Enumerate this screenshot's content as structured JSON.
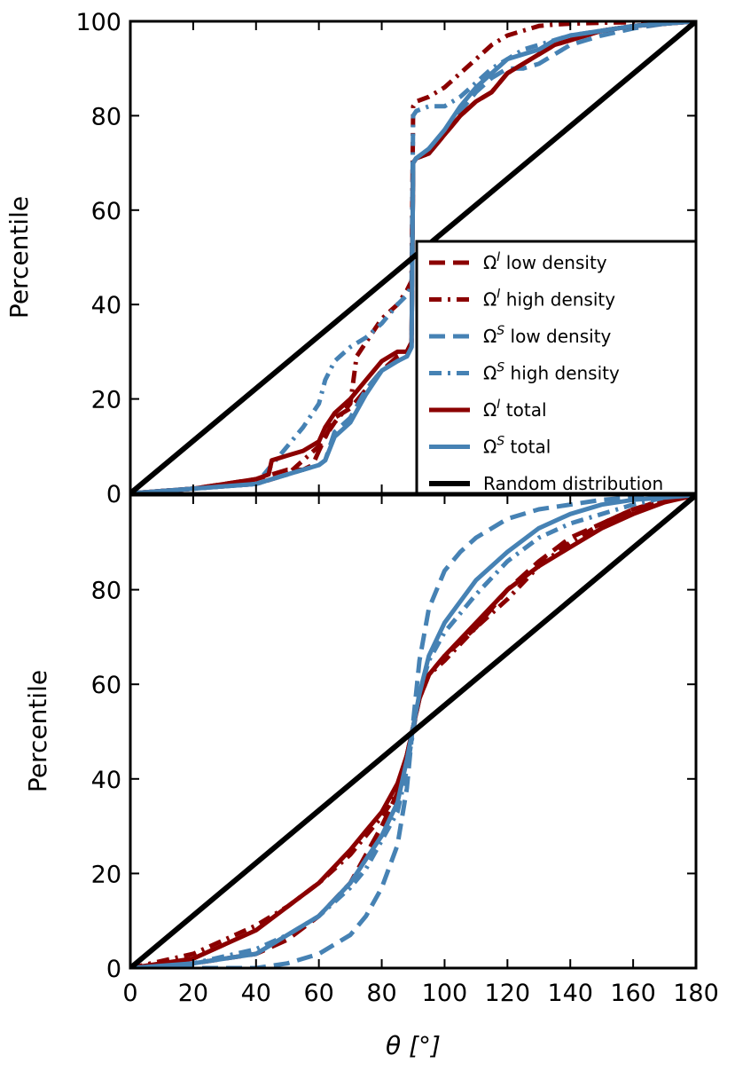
{
  "colors": {
    "omega_i": "#8b0000",
    "omega_s": "#4682b4",
    "random": "#000000",
    "background": "#ffffff"
  },
  "chart_data": [
    {
      "type": "line",
      "panel": "top",
      "title": "",
      "xlabel": "",
      "ylabel": "Percentile",
      "xlim": [
        0,
        180
      ],
      "ylim": [
        0,
        100
      ],
      "yticks": [
        "0",
        "20",
        "40",
        "60",
        "80",
        "100"
      ],
      "legend": {
        "placement": "lower-right",
        "entries": [
          {
            "symbol": "Ω",
            "sup": "I",
            "text": " low density",
            "style": "dashed",
            "color": "omega_i"
          },
          {
            "symbol": "Ω",
            "sup": "I",
            "text": " high density",
            "style": "dashdot",
            "color": "omega_i"
          },
          {
            "symbol": "Ω",
            "sup": "S",
            "text": " low density",
            "style": "dashed",
            "color": "omega_s"
          },
          {
            "symbol": "Ω",
            "sup": "S",
            "text": " high density",
            "style": "dashdot",
            "color": "omega_s"
          },
          {
            "symbol": "Ω",
            "sup": "I",
            "text": " total",
            "style": "solid",
            "color": "omega_i"
          },
          {
            "symbol": "Ω",
            "sup": "S",
            "text": " total",
            "style": "solid",
            "color": "omega_s"
          },
          {
            "symbol": "",
            "sup": "",
            "text": "Random distribution",
            "style": "solid",
            "color": "random"
          }
        ]
      },
      "series": [
        {
          "name": "OmegaI low density",
          "color": "omega_i",
          "style": "dashed",
          "x": [
            0,
            20,
            40,
            50,
            55,
            58,
            60,
            65,
            70,
            75,
            80,
            85,
            88,
            89.5,
            90,
            91,
            95,
            100,
            105,
            110,
            115,
            120,
            125,
            130,
            135,
            140,
            150,
            160,
            170,
            180
          ],
          "y": [
            0,
            1,
            3,
            5,
            5,
            6,
            9,
            16,
            18,
            22,
            26,
            29,
            30,
            32,
            70,
            71,
            72,
            76,
            80,
            83,
            85,
            89,
            91,
            93,
            95,
            96,
            98,
            99,
            99.5,
            100
          ]
        },
        {
          "name": "OmegaI high density",
          "color": "omega_i",
          "style": "dashdot",
          "x": [
            0,
            20,
            40,
            50,
            60,
            65,
            70,
            72,
            75,
            80,
            85,
            88,
            89.5,
            90,
            91,
            95,
            100,
            105,
            110,
            115,
            120,
            125,
            130,
            135,
            140,
            150,
            160,
            170,
            180
          ],
          "y": [
            0,
            1,
            2,
            4,
            10,
            15,
            19,
            29,
            32,
            37,
            40,
            43,
            45,
            82,
            83,
            84,
            86,
            89,
            92,
            95,
            97,
            98,
            99,
            99.3,
            99.5,
            99.7,
            99.8,
            99.9,
            100
          ]
        },
        {
          "name": "OmegaS low density",
          "color": "omega_s",
          "style": "dashed",
          "x": [
            0,
            20,
            40,
            45,
            50,
            55,
            60,
            62,
            65,
            70,
            75,
            80,
            85,
            88,
            89.5,
            90,
            91,
            95,
            100,
            105,
            110,
            115,
            120,
            125,
            130,
            135,
            140,
            150,
            160,
            170,
            180
          ],
          "y": [
            0,
            1,
            2,
            3,
            4,
            5,
            6,
            7,
            13,
            16,
            22,
            26,
            28,
            29,
            31,
            70,
            71,
            72,
            76,
            81,
            85,
            88,
            90,
            90,
            91,
            93,
            95,
            97,
            98.5,
            99.5,
            100
          ]
        },
        {
          "name": "OmegaS high density",
          "color": "omega_s",
          "style": "dashdot",
          "x": [
            0,
            20,
            40,
            45,
            50,
            55,
            60,
            62,
            65,
            70,
            75,
            80,
            85,
            88,
            89.5,
            90,
            91,
            95,
            100,
            105,
            110,
            115,
            120,
            125,
            130,
            135,
            140,
            150,
            160,
            170,
            180
          ],
          "y": [
            0,
            1,
            2,
            6,
            10,
            14,
            19,
            24,
            28,
            31,
            33,
            36,
            40,
            42,
            44,
            80,
            81,
            82,
            82,
            84,
            87,
            90,
            92,
            94,
            95,
            96,
            97,
            98,
            99,
            99.5,
            100
          ]
        },
        {
          "name": "OmegaI total",
          "color": "omega_i",
          "style": "solid",
          "x": [
            0,
            20,
            40,
            44,
            45,
            50,
            55,
            60,
            62,
            65,
            70,
            75,
            80,
            85,
            88,
            89.5,
            90,
            91,
            95,
            100,
            105,
            110,
            115,
            120,
            125,
            130,
            135,
            140,
            150,
            160,
            170,
            180
          ],
          "y": [
            0,
            1,
            3,
            4,
            7,
            8,
            9,
            11,
            14,
            17,
            20,
            24,
            28,
            30,
            30,
            32,
            70,
            71,
            72,
            76,
            80,
            83,
            85,
            89,
            91,
            93,
            95,
            96,
            98,
            99,
            99.5,
            100
          ]
        },
        {
          "name": "OmegaS total",
          "color": "omega_s",
          "style": "solid",
          "x": [
            0,
            20,
            40,
            45,
            50,
            55,
            60,
            62,
            65,
            70,
            75,
            80,
            85,
            88,
            89.5,
            90,
            91,
            95,
            100,
            105,
            110,
            115,
            120,
            125,
            130,
            135,
            140,
            150,
            160,
            170,
            180
          ],
          "y": [
            0,
            1,
            2,
            3,
            4,
            5,
            6,
            7,
            12,
            15,
            21,
            26,
            28,
            29,
            31,
            70,
            71,
            73,
            77,
            82,
            86,
            89,
            92,
            93,
            94,
            96,
            97,
            98,
            99,
            99.5,
            100
          ]
        },
        {
          "name": "Random distribution",
          "color": "random",
          "style": "solid",
          "x": [
            0,
            180
          ],
          "y": [
            0,
            100
          ]
        }
      ]
    },
    {
      "type": "line",
      "panel": "bottom",
      "title": "",
      "xlabel": "θ [°]",
      "ylabel": "Percentile",
      "xlim": [
        0,
        180
      ],
      "ylim": [
        0,
        100
      ],
      "xticks": [
        "0",
        "20",
        "40",
        "60",
        "80",
        "100",
        "120",
        "140",
        "160",
        "180"
      ],
      "yticks": [
        "0",
        "20",
        "40",
        "60",
        "80"
      ],
      "series": [
        {
          "name": "OmegaI low density",
          "color": "omega_i",
          "style": "dashed",
          "x": [
            0,
            20,
            40,
            50,
            60,
            70,
            75,
            80,
            85,
            88,
            90,
            92,
            95,
            100,
            110,
            120,
            130,
            140,
            150,
            160,
            170,
            180
          ],
          "y": [
            0,
            1,
            3,
            6,
            11,
            18,
            24,
            30,
            37,
            45,
            51,
            57,
            62,
            66,
            72,
            80,
            86,
            91,
            94,
            97,
            99,
            100
          ]
        },
        {
          "name": "OmegaI high density",
          "color": "omega_i",
          "style": "dashdot",
          "x": [
            0,
            20,
            40,
            50,
            60,
            70,
            75,
            80,
            85,
            88,
            90,
            92,
            95,
            100,
            110,
            120,
            130,
            140,
            150,
            160,
            170,
            180
          ],
          "y": [
            0,
            3,
            9,
            13,
            18,
            24,
            28,
            32,
            37,
            45,
            51,
            57,
            62,
            65,
            72,
            78,
            85,
            90,
            94,
            97,
            99,
            100
          ]
        },
        {
          "name": "OmegaS low density",
          "color": "omega_s",
          "style": "dashed",
          "x": [
            0,
            20,
            40,
            50,
            60,
            70,
            75,
            80,
            85,
            88,
            90,
            92,
            95,
            100,
            105,
            110,
            120,
            130,
            140,
            150,
            160,
            170,
            180
          ],
          "y": [
            0,
            0,
            0,
            1,
            3,
            7,
            11,
            17,
            26,
            38,
            52,
            65,
            76,
            84,
            88,
            91,
            95,
            97,
            98,
            99,
            99.5,
            99.8,
            100
          ]
        },
        {
          "name": "OmegaS high density",
          "color": "omega_s",
          "style": "dashdot",
          "x": [
            0,
            20,
            40,
            50,
            60,
            70,
            75,
            80,
            85,
            88,
            90,
            92,
            95,
            100,
            110,
            120,
            130,
            140,
            150,
            160,
            170,
            180
          ],
          "y": [
            0,
            1,
            4,
            7,
            11,
            17,
            21,
            27,
            33,
            42,
            50,
            58,
            65,
            71,
            79,
            86,
            91,
            94,
            96,
            98,
            99.5,
            100
          ]
        },
        {
          "name": "OmegaI total",
          "color": "omega_i",
          "style": "solid",
          "x": [
            0,
            20,
            40,
            50,
            60,
            70,
            75,
            80,
            85,
            88,
            90,
            92,
            95,
            100,
            110,
            120,
            130,
            140,
            150,
            160,
            170,
            180
          ],
          "y": [
            0,
            2,
            8,
            13,
            18,
            25,
            29,
            33,
            39,
            45,
            51,
            57,
            62,
            66,
            73,
            80,
            85,
            89,
            93,
            96,
            98.5,
            100
          ]
        },
        {
          "name": "OmegaS total",
          "color": "omega_s",
          "style": "solid",
          "x": [
            0,
            20,
            40,
            50,
            60,
            70,
            75,
            80,
            85,
            88,
            90,
            92,
            95,
            100,
            110,
            120,
            130,
            140,
            150,
            160,
            170,
            180
          ],
          "y": [
            0,
            1,
            3,
            7,
            11,
            18,
            23,
            28,
            35,
            44,
            51,
            58,
            66,
            73,
            82,
            88,
            93,
            96,
            98,
            99,
            99.5,
            100
          ]
        },
        {
          "name": "Random distribution",
          "color": "random",
          "style": "solid",
          "x": [
            0,
            180
          ],
          "y": [
            0,
            100
          ]
        }
      ]
    }
  ]
}
